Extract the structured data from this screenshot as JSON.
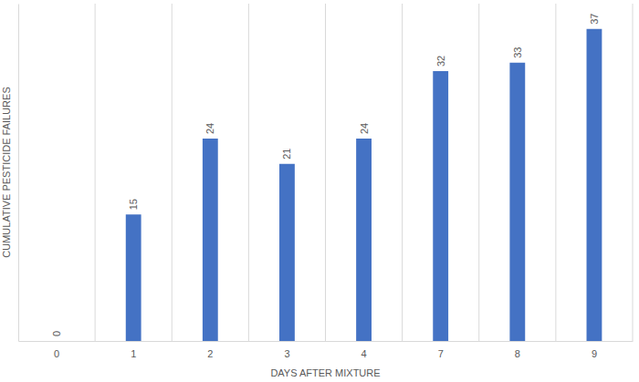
{
  "chart_data": {
    "type": "bar",
    "x_label": "DAYS AFTER MIXTURE",
    "y_label": "CUMULATIVE PESTICIDE FAILURES",
    "categories": [
      "0",
      "1",
      "2",
      "3",
      "4",
      "7",
      "8",
      "9"
    ],
    "values": [
      0,
      15,
      24,
      21,
      24,
      32,
      33,
      37
    ],
    "color": "#4472c4",
    "ylim": [
      0,
      40
    ],
    "grid": true,
    "data_labels": true,
    "tick_labels": "x"
  }
}
